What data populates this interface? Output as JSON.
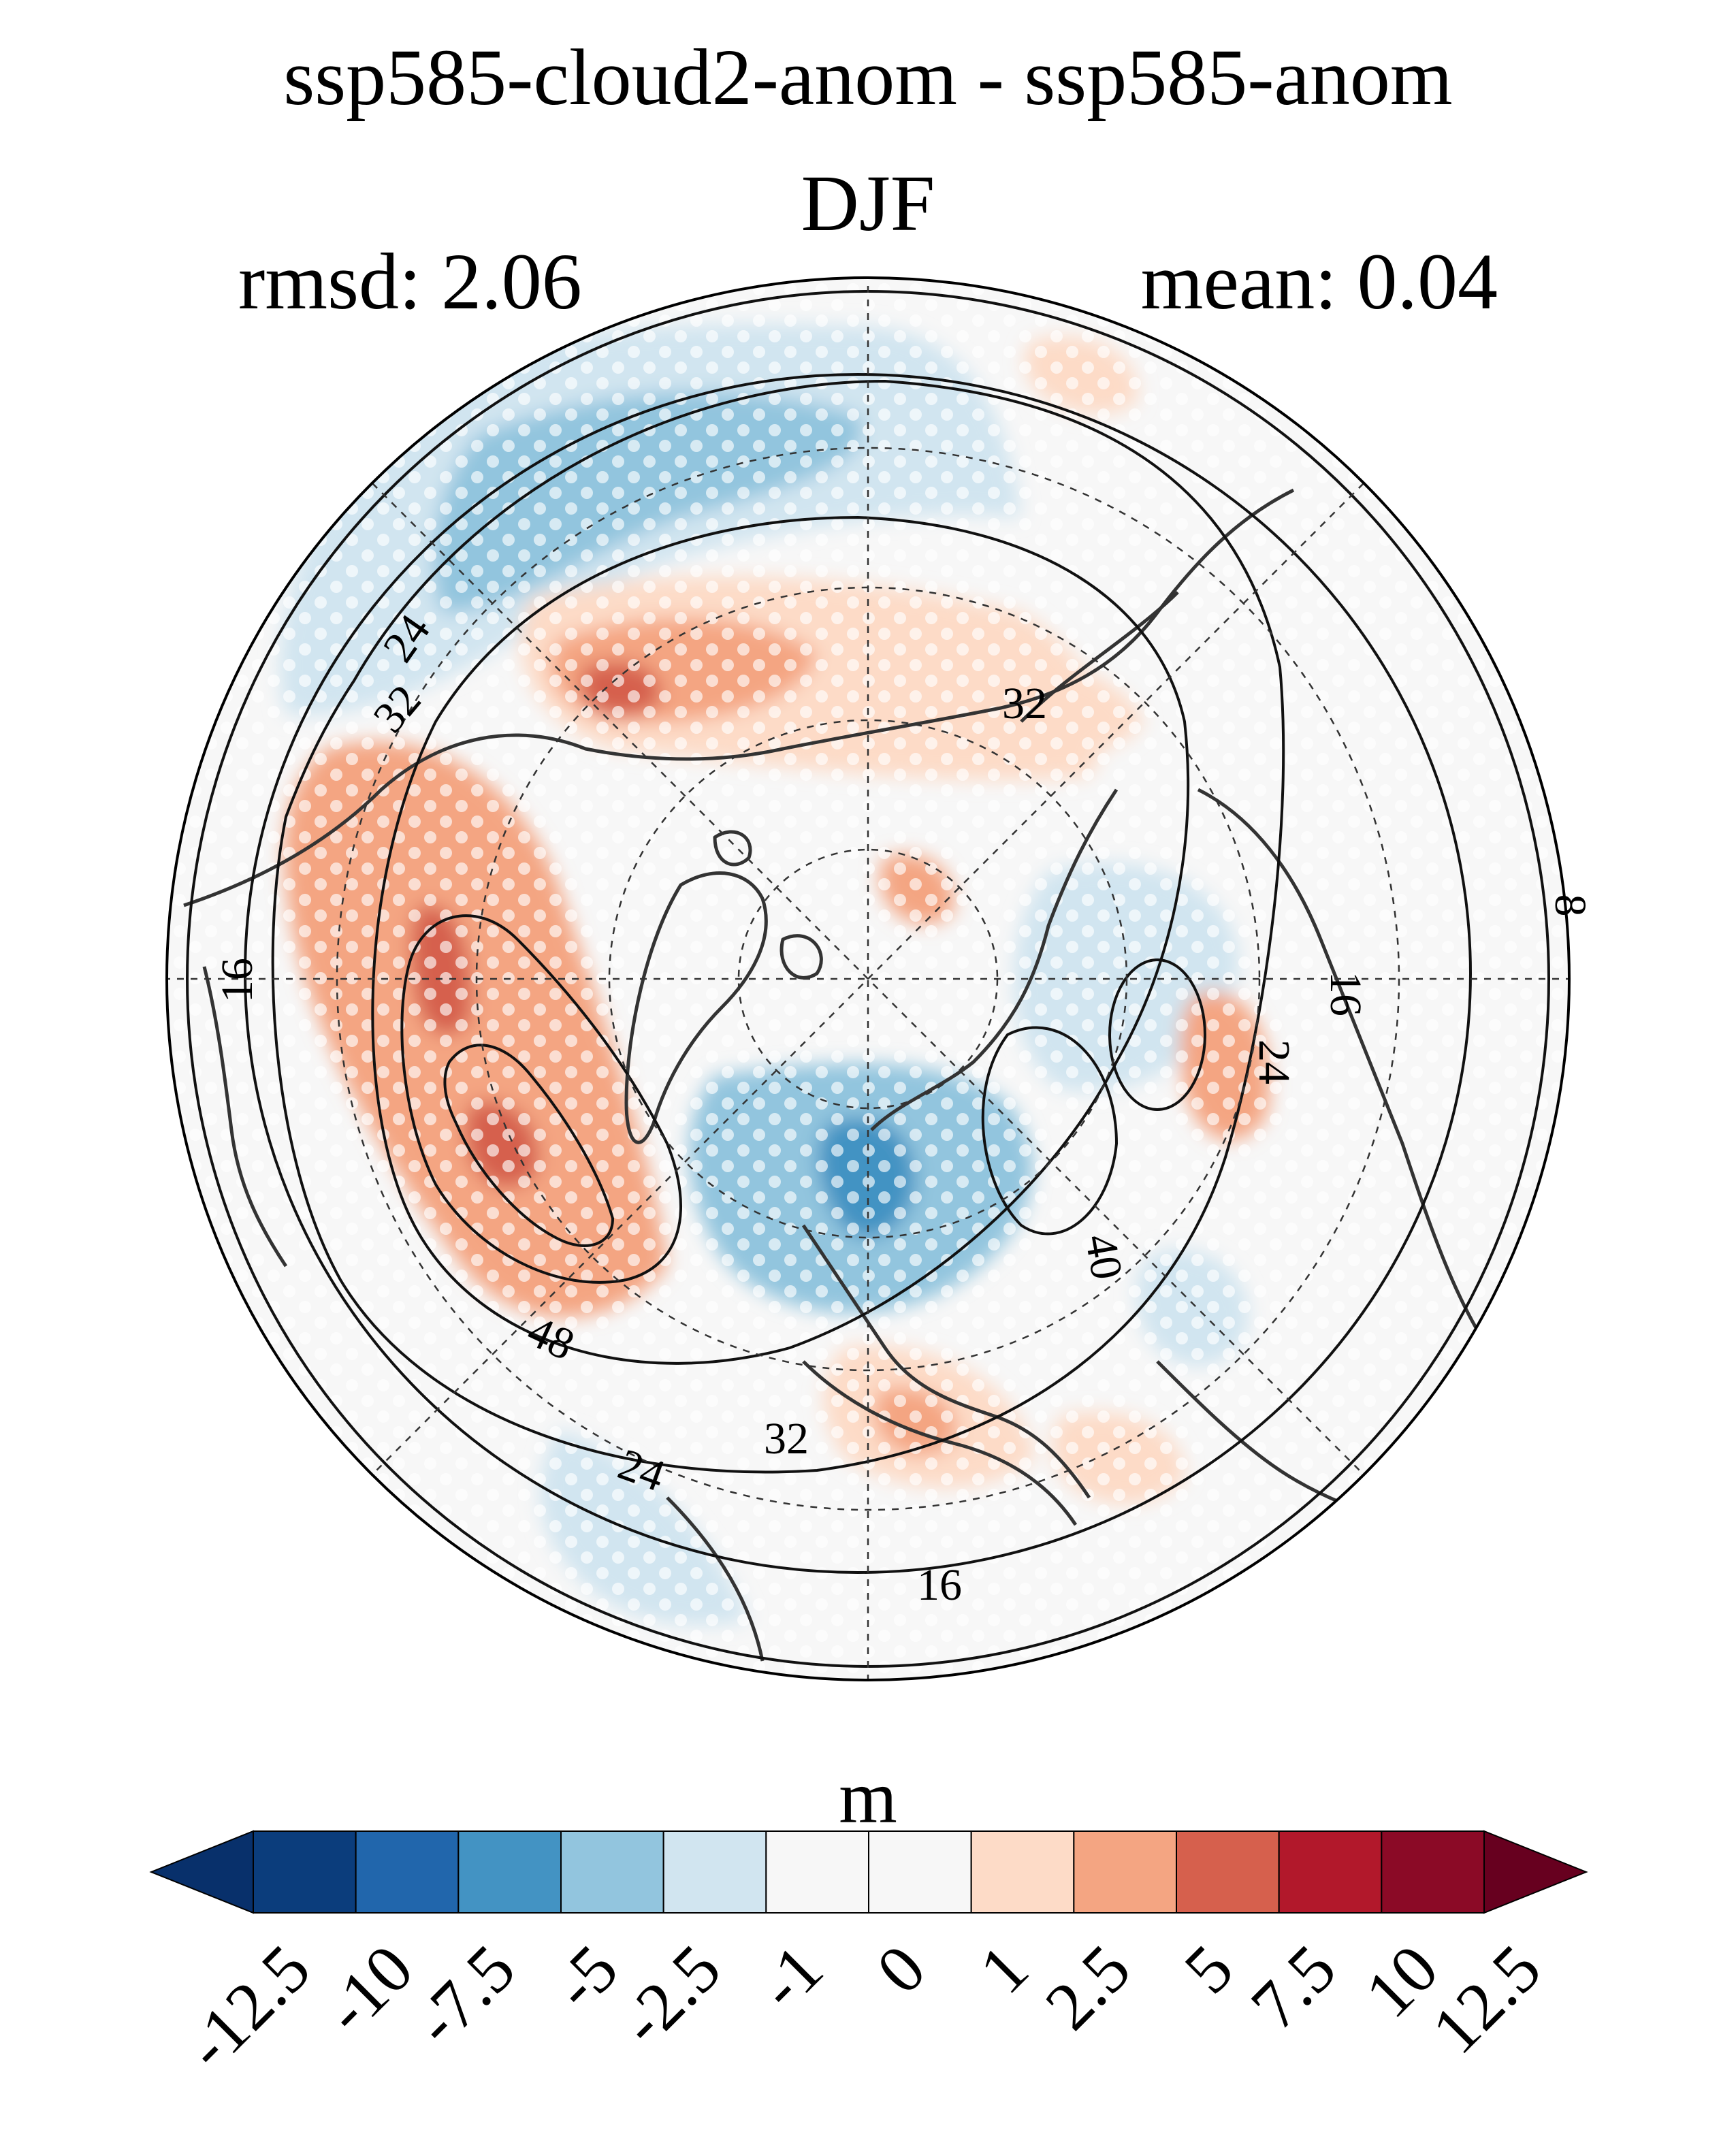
{
  "title": "ssp585-cloud2-anom - ssp585-anom",
  "season": "DJF",
  "rmsd_label": "rmsd: 2.06",
  "mean_label": "mean: 0.04",
  "colorbar": {
    "units": "m",
    "levels": [
      "-12.5",
      "-10",
      "-7.5",
      "-5",
      "-2.5",
      "-1",
      "0",
      "1",
      "2.5",
      "5",
      "7.5",
      "10",
      "12.5"
    ],
    "colors": [
      "#08306b",
      "#0b3d7c",
      "#2166ac",
      "#4393c3",
      "#92c5de",
      "#d1e5f0",
      "#f7f7f7",
      "#f7f7f7",
      "#fddbc7",
      "#f4a582",
      "#d6604d",
      "#b2182b",
      "#8b0a26",
      "#67001f"
    ],
    "extend": "both"
  },
  "map": {
    "projection": "north-polar-stereographic",
    "contour_labels": [
      "8",
      "16",
      "16",
      "16",
      "24",
      "24",
      "24",
      "32",
      "32",
      "32",
      "40",
      "48"
    ],
    "stippling": "significance-dots",
    "colors": {
      "positive_strong": "#d6604d",
      "positive": "#f4a582",
      "positive_weak": "#fddbc7",
      "negative_weak": "#d1e5f0",
      "negative": "#92c5de",
      "negative_strong": "#4393c3",
      "neutral": "#f7f7f7",
      "contour": "#111111",
      "coast": "#333333"
    }
  }
}
